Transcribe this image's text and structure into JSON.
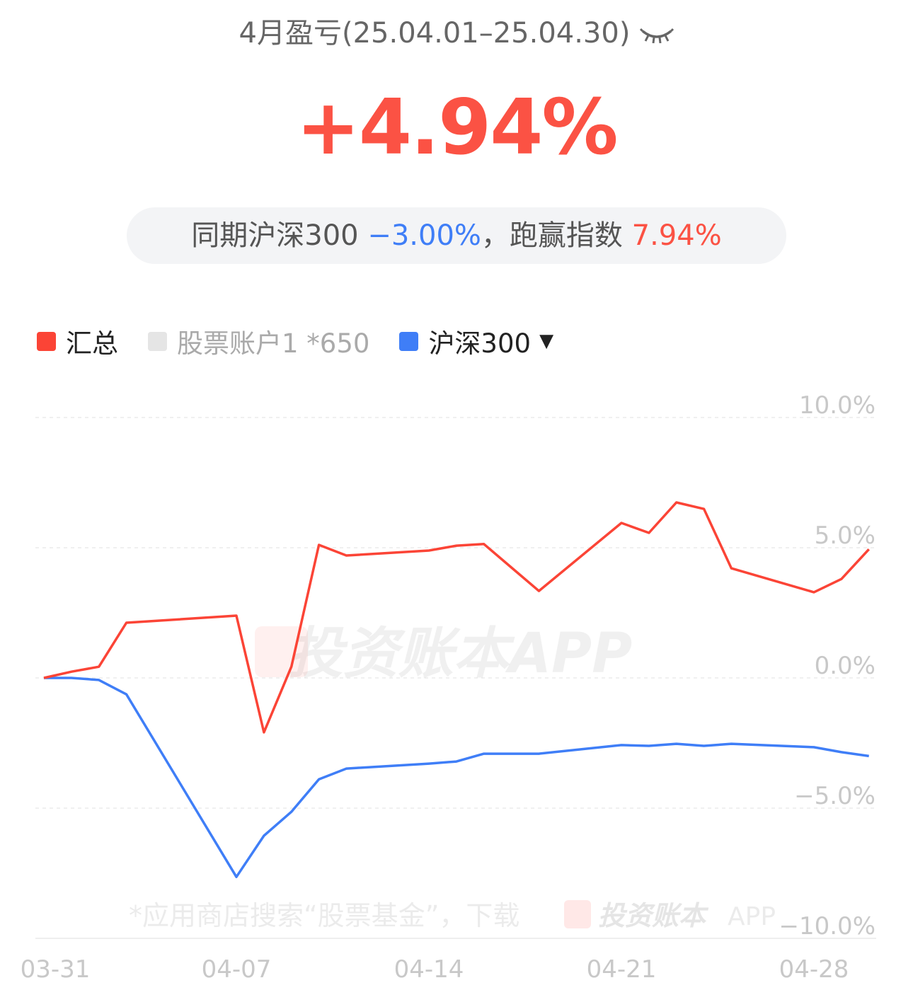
{
  "header": {
    "title": "4月盈亏(25.04.01–25.04.30)",
    "eye_icon": "eye-closed-icon",
    "return_value": "+4.94%"
  },
  "comparison": {
    "prefix": "同期沪深300 ",
    "index_return": "−3.00%",
    "middle": "，跑赢指数 ",
    "excess_return": "7.94%"
  },
  "legend": [
    {
      "label": "汇总",
      "color": "#fb4436",
      "active": true
    },
    {
      "label": "股票账户1 *650",
      "color": "#e5e5e5",
      "active": false
    },
    {
      "label": "沪深300",
      "color": "#3f7ef7",
      "active": true,
      "dropdown_icon": "triangle-down-icon"
    }
  ],
  "watermark": {
    "center": "投资账本APP",
    "footer": "*应用商店搜索“股票基金”，下载",
    "footer_brand": "投资账本",
    "footer_app": "APP"
  },
  "chart_data": {
    "type": "line",
    "x": [
      "03-31",
      "04-01",
      "04-02",
      "04-03",
      "04-07",
      "04-08",
      "04-09",
      "04-10",
      "04-11",
      "04-14",
      "04-15",
      "04-16",
      "04-17",
      "04-18",
      "04-21",
      "04-22",
      "04-23",
      "04-24",
      "04-25",
      "04-28",
      "04-29",
      "04-30"
    ],
    "series": [
      {
        "name": "汇总",
        "color": "#fb4436",
        "values": [
          0,
          0.24,
          0.43,
          2.12,
          2.39,
          -2.09,
          0.43,
          5.11,
          4.7,
          4.89,
          5.08,
          5.14,
          4.24,
          3.34,
          5.95,
          5.57,
          6.74,
          6.49,
          4.21,
          3.29,
          3.8,
          4.94
        ]
      },
      {
        "name": "沪深300",
        "color": "#3f7ef7",
        "values": [
          0,
          0,
          -0.08,
          -0.63,
          -7.64,
          -6.06,
          -5.14,
          -3.89,
          -3.48,
          -3.29,
          -3.21,
          -2.91,
          -2.91,
          -2.91,
          -2.58,
          -2.61,
          -2.53,
          -2.61,
          -2.53,
          -2.66,
          -2.85,
          -3.0
        ]
      }
    ],
    "x_tick_labels": [
      "03-31",
      "04-07",
      "04-14",
      "04-21",
      "04-28"
    ],
    "y_tick_labels": [
      "10.0%",
      "5.0%",
      "0.0%",
      "−5.0%",
      "−10.0%"
    ],
    "y_ticks": [
      10,
      5,
      0,
      -5,
      -10
    ],
    "ylim": [
      -10,
      10
    ],
    "grid": true
  }
}
